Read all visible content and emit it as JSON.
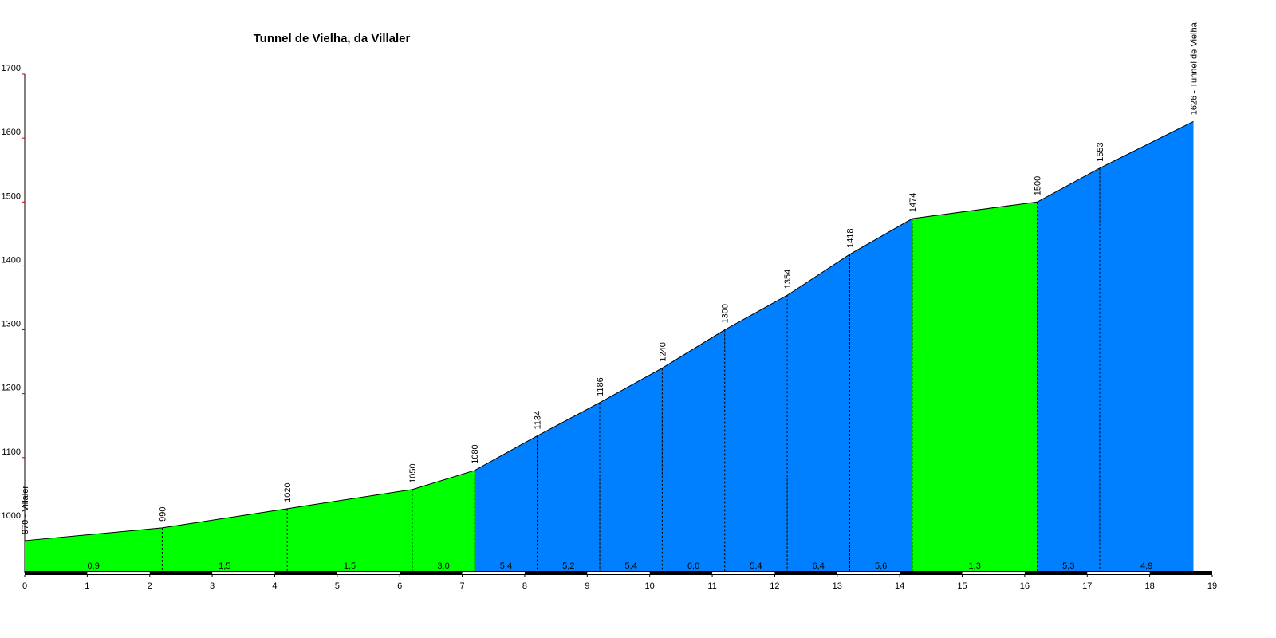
{
  "chart_data": {
    "type": "area",
    "title": "Tunnel de Vielha, da Villaler",
    "x": [
      0,
      2.2,
      4.2,
      6.2,
      7.2,
      8.2,
      9.2,
      10.2,
      11.2,
      12.2,
      13.2,
      14.2,
      16.2,
      17.2,
      18.7
    ],
    "values": [
      970,
      990,
      1020,
      1050,
      1080,
      1134,
      1186,
      1240,
      1300,
      1354,
      1418,
      1474,
      1500,
      1553,
      1626
    ],
    "value_labels": [
      "970 - Villaler",
      "990",
      "1020",
      "1050",
      "1080",
      "1134",
      "1186",
      "1240",
      "1300",
      "1354",
      "1418",
      "1474",
      "1500",
      "1553",
      "1626 - Tunnel de Vielha"
    ],
    "segments": {
      "values": [
        0.9,
        1.5,
        1.5,
        3.0,
        5.4,
        5.2,
        5.4,
        6.0,
        5.4,
        6.4,
        5.6,
        1.3,
        5.3,
        4.9
      ],
      "labels": [
        "0,9",
        "1,5",
        "1,5",
        "3,0",
        "5,4",
        "5,2",
        "5,4",
        "6,0",
        "5,4",
        "6,4",
        "5,6",
        "1,3",
        "5,3",
        "4,9"
      ],
      "colors": [
        "#00ff00",
        "#00ff00",
        "#00ff00",
        "#00ff00",
        "#0080ff",
        "#0080ff",
        "#0080ff",
        "#0080ff",
        "#0080ff",
        "#0080ff",
        "#0080ff",
        "#00ff00",
        "#0080ff",
        "#0080ff"
      ]
    },
    "xlim": [
      0,
      19
    ],
    "xticks": [
      0,
      1,
      2,
      3,
      4,
      5,
      6,
      7,
      8,
      9,
      10,
      11,
      12,
      13,
      14,
      15,
      16,
      17,
      18,
      19
    ],
    "ylim": [
      920,
      1700
    ],
    "yticks": [
      1000,
      1100,
      1200,
      1300,
      1400,
      1500,
      1600,
      1700
    ]
  }
}
